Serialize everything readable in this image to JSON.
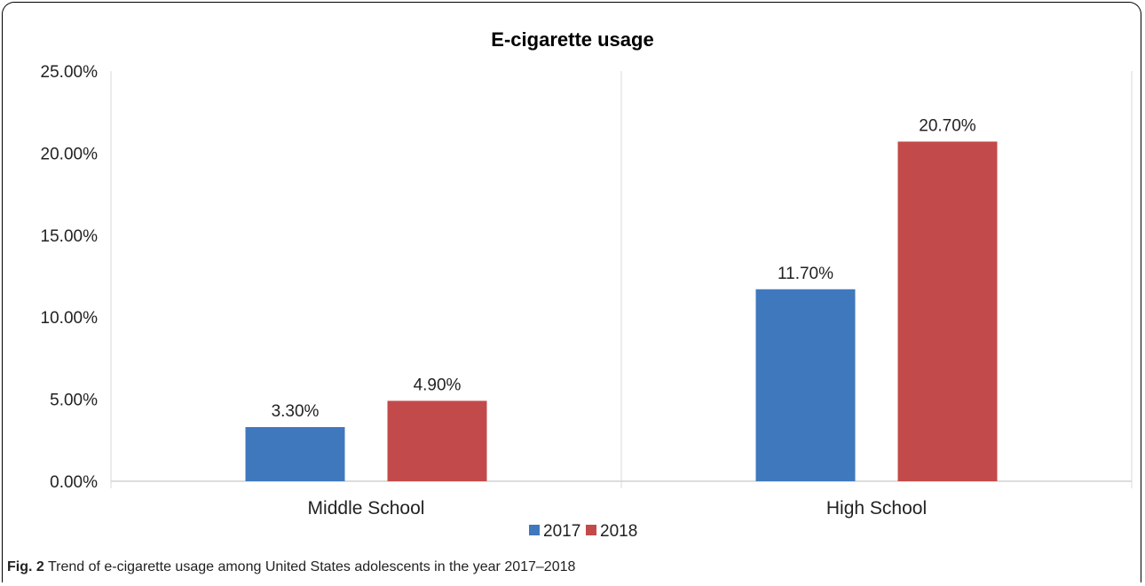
{
  "chart_data": {
    "type": "bar",
    "title": "E-cigarette usage",
    "categories": [
      "Middle School",
      "High School"
    ],
    "series": [
      {
        "name": "2017",
        "values": [
          3.3,
          11.7
        ],
        "labels": [
          "3.30%",
          "11.70%"
        ],
        "color": "#3f78bd"
      },
      {
        "name": "2018",
        "values": [
          4.9,
          20.7
        ],
        "labels": [
          "4.90%",
          "20.70%"
        ],
        "color": "#c34a4a"
      }
    ],
    "ylim": [
      0,
      25
    ],
    "yticks": [
      0,
      5,
      10,
      15,
      20,
      25
    ],
    "ytick_labels": [
      "0.00%",
      "5.00%",
      "10.00%",
      "15.00%",
      "20.00%",
      "25.00%"
    ],
    "xlabel": "",
    "ylabel": "",
    "grid": false,
    "legend_position": "bottom"
  },
  "caption": {
    "label": "Fig. 2",
    "text": "Trend of e-cigarette usage among United States adolescents in the year 2017–2018"
  }
}
